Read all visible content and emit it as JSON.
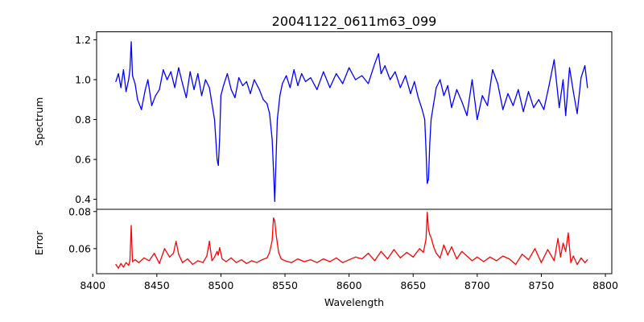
{
  "chart_data": {
    "type": "line",
    "title": "20041122_0611m63_099",
    "xlabel": "Wavelength",
    "xlim": [
      8403,
      8805
    ],
    "xticks": [
      8400,
      8450,
      8500,
      8550,
      8600,
      8650,
      8700,
      8750,
      8800
    ],
    "panels": [
      {
        "ylabel": "Spectrum",
        "ylim": [
          0.35,
          1.24
        ],
        "yticks": [
          0.4,
          0.6,
          0.8,
          1.0,
          1.2
        ],
        "ytick_decimals": 1,
        "series": [
          {
            "color": "#0000ff",
            "x": [
              8418,
              8420,
              8422,
              8424,
              8426,
              8428,
              8429,
              8430,
              8431,
              8433,
              8435,
              8438,
              8441,
              8443,
              8446,
              8449,
              8452,
              8455,
              8458,
              8461,
              8464,
              8467,
              8470,
              8473,
              8476,
              8479,
              8482,
              8485,
              8488,
              8491,
              8493,
              8495,
              8496,
              8497,
              8498,
              8499,
              8500,
              8502,
              8505,
              8508,
              8511,
              8514,
              8517,
              8520,
              8523,
              8526,
              8530,
              8533,
              8536,
              8538,
              8540,
              8541,
              8542,
              8543,
              8544,
              8546,
              8548,
              8551,
              8554,
              8557,
              8560,
              8563,
              8566,
              8570,
              8575,
              8580,
              8585,
              8590,
              8595,
              8600,
              8605,
              8610,
              8615,
              8620,
              8623,
              8625,
              8628,
              8632,
              8636,
              8640,
              8644,
              8648,
              8651,
              8654,
              8657,
              8659,
              8660,
              8661,
              8662,
              8663,
              8664,
              8666,
              8668,
              8671,
              8674,
              8677,
              8680,
              8684,
              8688,
              8692,
              8696,
              8700,
              8704,
              8708,
              8712,
              8716,
              8720,
              8724,
              8728,
              8732,
              8736,
              8740,
              8744,
              8748,
              8752,
              8756,
              8760,
              8764,
              8767,
              8769,
              8772,
              8775,
              8778,
              8781,
              8784,
              8786
            ],
            "y": [
              0.99,
              1.03,
              0.96,
              1.05,
              0.94,
              1.0,
              1.05,
              1.19,
              1.02,
              0.98,
              0.9,
              0.85,
              0.95,
              1.0,
              0.87,
              0.92,
              0.95,
              1.05,
              1.0,
              1.04,
              0.96,
              1.06,
              0.98,
              0.91,
              1.04,
              0.95,
              1.03,
              0.92,
              1.0,
              0.96,
              0.88,
              0.8,
              0.7,
              0.6,
              0.57,
              0.7,
              0.92,
              0.97,
              1.03,
              0.95,
              0.91,
              1.01,
              0.97,
              0.99,
              0.93,
              1.0,
              0.95,
              0.9,
              0.88,
              0.83,
              0.7,
              0.55,
              0.39,
              0.6,
              0.8,
              0.92,
              0.98,
              1.02,
              0.96,
              1.05,
              0.97,
              1.03,
              0.99,
              1.01,
              0.95,
              1.04,
              0.96,
              1.03,
              0.98,
              1.06,
              1.0,
              1.02,
              0.98,
              1.08,
              1.13,
              1.03,
              1.07,
              1.0,
              1.04,
              0.96,
              1.02,
              0.93,
              0.99,
              0.91,
              0.85,
              0.8,
              0.65,
              0.48,
              0.5,
              0.68,
              0.8,
              0.88,
              0.96,
              1.0,
              0.92,
              0.97,
              0.86,
              0.95,
              0.89,
              0.82,
              1.0,
              0.8,
              0.92,
              0.87,
              1.05,
              0.98,
              0.85,
              0.93,
              0.87,
              0.95,
              0.84,
              0.94,
              0.86,
              0.9,
              0.85,
              0.97,
              1.1,
              0.86,
              1.0,
              0.82,
              1.06,
              0.94,
              0.83,
              1.01,
              1.07,
              0.96
            ]
          }
        ]
      },
      {
        "ylabel": "Error",
        "ylim": [
          0.0465,
          0.0812
        ],
        "yticks": [
          0.06,
          0.08
        ],
        "ytick_decimals": 2,
        "series": [
          {
            "color": "#ff0000",
            "x": [
              8418,
              8420,
              8422,
              8424,
              8426,
              8428,
              8429,
              8430,
              8431,
              8433,
              8436,
              8440,
              8444,
              8448,
              8452,
              8456,
              8460,
              8463,
              8465,
              8467,
              8470,
              8474,
              8478,
              8482,
              8486,
              8489,
              8491,
              8493,
              8495,
              8497,
              8498,
              8499,
              8501,
              8504,
              8508,
              8512,
              8516,
              8520,
              8524,
              8528,
              8532,
              8536,
              8538,
              8540,
              8541,
              8542,
              8543,
              8545,
              8547,
              8550,
              8555,
              8560,
              8565,
              8570,
              8575,
              8580,
              8585,
              8590,
              8595,
              8600,
              8605,
              8610,
              8615,
              8620,
              8625,
              8630,
              8635,
              8640,
              8645,
              8650,
              8655,
              8658,
              8660,
              8661,
              8662,
              8663,
              8664,
              8666,
              8668,
              8671,
              8674,
              8677,
              8680,
              8684,
              8688,
              8692,
              8696,
              8700,
              8705,
              8710,
              8715,
              8720,
              8725,
              8730,
              8735,
              8740,
              8745,
              8750,
              8755,
              8760,
              8763,
              8765,
              8767,
              8769,
              8771,
              8773,
              8775,
              8778,
              8781,
              8784,
              8786
            ],
            "y": [
              0.0515,
              0.0495,
              0.052,
              0.05,
              0.0525,
              0.051,
              0.0535,
              0.0725,
              0.053,
              0.054,
              0.0525,
              0.055,
              0.0535,
              0.0575,
              0.052,
              0.06,
              0.0555,
              0.0575,
              0.064,
              0.057,
              0.0525,
              0.0545,
              0.0515,
              0.0535,
              0.0525,
              0.056,
              0.064,
              0.0535,
              0.0555,
              0.0585,
              0.0565,
              0.0605,
              0.0545,
              0.053,
              0.055,
              0.0525,
              0.054,
              0.052,
              0.0535,
              0.0525,
              0.054,
              0.055,
              0.058,
              0.0645,
              0.0765,
              0.075,
              0.068,
              0.058,
              0.0545,
              0.0535,
              0.0525,
              0.0545,
              0.053,
              0.054,
              0.0525,
              0.0545,
              0.053,
              0.055,
              0.0525,
              0.054,
              0.0555,
              0.0545,
              0.0575,
              0.0535,
              0.0585,
              0.0545,
              0.0595,
              0.055,
              0.058,
              0.0555,
              0.06,
              0.058,
              0.065,
              0.0795,
              0.0705,
              0.0675,
              0.066,
              0.061,
              0.0575,
              0.055,
              0.062,
              0.0565,
              0.061,
              0.0545,
              0.0585,
              0.056,
              0.0535,
              0.0555,
              0.053,
              0.0555,
              0.0535,
              0.056,
              0.0545,
              0.0515,
              0.057,
              0.054,
              0.06,
              0.0525,
              0.0595,
              0.0535,
              0.0655,
              0.0555,
              0.063,
              0.0585,
              0.0685,
              0.0525,
              0.056,
              0.0515,
              0.055,
              0.0525,
              0.054
            ]
          }
        ]
      }
    ]
  }
}
